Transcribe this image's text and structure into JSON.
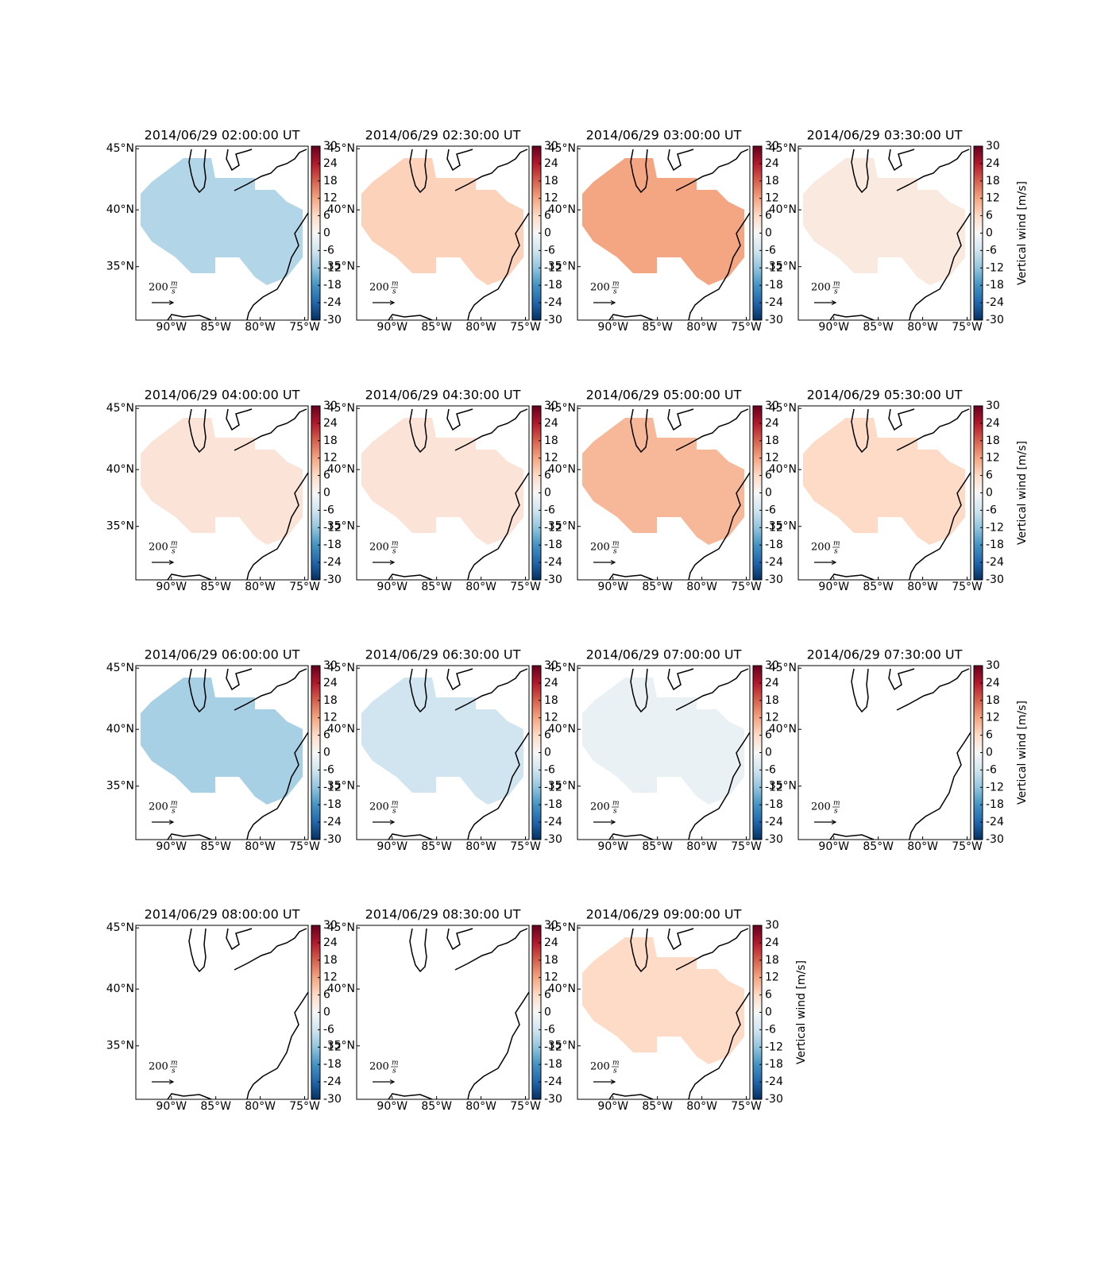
{
  "axes": {
    "xlim": [
      -94,
      -74.6
    ],
    "ylim": [
      30,
      45.2
    ],
    "xticks": [
      {
        "value": -90,
        "label": "90°W"
      },
      {
        "value": -85,
        "label": "85°W"
      },
      {
        "value": -80,
        "label": "80°W"
      },
      {
        "value": -75,
        "label": "75°W"
      }
    ],
    "yticks": [
      {
        "value": 45,
        "label": "45°N"
      },
      {
        "value": 40,
        "label": "40°N"
      },
      {
        "value": 35,
        "label": "35°N"
      }
    ],
    "projection": "mercator"
  },
  "colorbar": {
    "label": "Vertical wind [m/s]",
    "clim": [
      -30,
      30
    ],
    "ticks": [
      30,
      24,
      18,
      12,
      6,
      0,
      -6,
      -12,
      -18,
      -24,
      -30
    ],
    "colormap": [
      "#053061",
      "#2166ac",
      "#4393c3",
      "#92c5de",
      "#d1e5f0",
      "#f7f7f7",
      "#fddbc7",
      "#f4a582",
      "#d6604d",
      "#b2182b",
      "#67001f"
    ]
  },
  "quiver_key": {
    "value": 200,
    "unit_numerator": "m",
    "unit_denominator": "s"
  },
  "chart_data": [
    {
      "type": "map",
      "title": "2014/06/29 02:00:00 UT",
      "vertical_wind": -9
    },
    {
      "type": "map",
      "title": "2014/06/29 02:30:00 UT",
      "vertical_wind": 7
    },
    {
      "type": "map",
      "title": "2014/06/29 03:00:00 UT",
      "vertical_wind": 12
    },
    {
      "type": "map",
      "title": "2014/06/29 03:30:00 UT",
      "vertical_wind": 3,
      "show_colorbar_label": true
    },
    {
      "type": "map",
      "title": "2014/06/29 04:00:00 UT",
      "vertical_wind": 4
    },
    {
      "type": "map",
      "title": "2014/06/29 04:30:00 UT",
      "vertical_wind": 4
    },
    {
      "type": "map",
      "title": "2014/06/29 05:00:00 UT",
      "vertical_wind": 10
    },
    {
      "type": "map",
      "title": "2014/06/29 05:30:00 UT",
      "vertical_wind": 6,
      "show_colorbar_label": true
    },
    {
      "type": "map",
      "title": "2014/06/29 06:00:00 UT",
      "vertical_wind": -10
    },
    {
      "type": "map",
      "title": "2014/06/29 06:30:00 UT",
      "vertical_wind": -6
    },
    {
      "type": "map",
      "title": "2014/06/29 07:00:00 UT",
      "vertical_wind": -2
    },
    {
      "type": "map",
      "title": "2014/06/29 07:30:00 UT",
      "vertical_wind": null,
      "show_colorbar_label": true
    },
    {
      "type": "map",
      "title": "2014/06/29 08:00:00 UT",
      "vertical_wind": null
    },
    {
      "type": "map",
      "title": "2014/06/29 08:30:00 UT",
      "vertical_wind": null
    },
    {
      "type": "map",
      "title": "2014/06/29 09:00:00 UT",
      "vertical_wind": 6,
      "show_colorbar_label": true
    }
  ]
}
